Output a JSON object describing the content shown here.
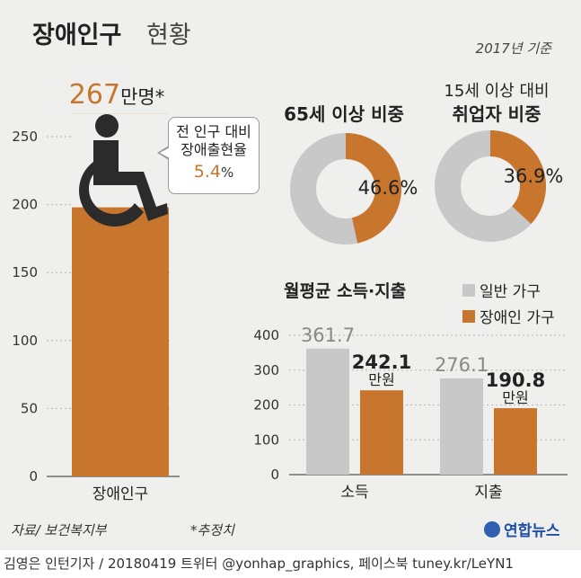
{
  "header": {
    "title_bold": "장애인구",
    "title_light": "현황",
    "year_note": "2017년 기준"
  },
  "footer": {
    "source": "자료/ 보건복지부",
    "note": "*추정치",
    "logo_text": "연합뉴스",
    "credit": "김영은 인턴기자 / 20180419   트위터 @yonhap_graphics, 페이스북 tuney.kr/LeYN1"
  },
  "colors": {
    "accent": "#c8762e",
    "general": "#c8c8c8",
    "background": "#efefed",
    "icon": "#2b2b2b"
  },
  "chart_data": [
    {
      "type": "bar",
      "title": "",
      "categories": [
        "장애인구"
      ],
      "values": [
        267
      ],
      "value_label_number": "267",
      "value_label_unit": "만명*",
      "ylim": [
        0,
        250
      ],
      "yticks": [
        0,
        50,
        100,
        150,
        200,
        250
      ],
      "grid": true,
      "icon": "wheelchair-icon",
      "callout": {
        "line1": "전 인구 대비",
        "line2": "장애출현율",
        "value": "5.4",
        "unit": "%"
      }
    },
    {
      "type": "pie",
      "title": "65세 이상 비중",
      "value": 46.6,
      "label": "46.6%"
    },
    {
      "type": "pie",
      "title_line1": "15세 이상 대비",
      "title_line2": "취업자 비중",
      "value": 36.9,
      "label": "36.9%"
    },
    {
      "type": "bar",
      "title": "월평균 소득·지출",
      "categories": [
        "소득",
        "지출"
      ],
      "series": [
        {
          "name": "일반 가구",
          "values": [
            361.7,
            276.1
          ],
          "labels": [
            "361.7",
            "276.1"
          ]
        },
        {
          "name": "장애인 가구",
          "values": [
            242.1,
            190.8
          ],
          "labels": [
            "242.1",
            "190.8"
          ],
          "unit": "만원"
        }
      ],
      "ylim": [
        0,
        400
      ],
      "yticks": [
        0,
        100,
        200,
        300,
        400
      ],
      "legend": "top-right",
      "grid": true
    }
  ]
}
